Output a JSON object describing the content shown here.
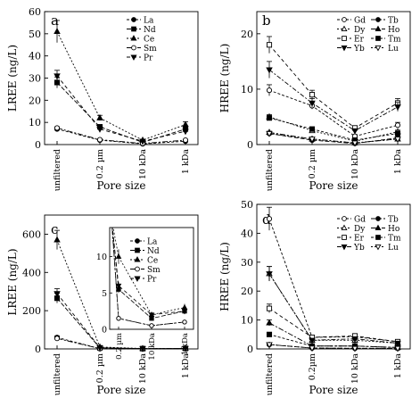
{
  "chart_data": [
    {
      "panel": "a",
      "type": "line",
      "categories": [
        "unfiltered",
        "0.2 µm",
        "10 kDa",
        "1 kDa"
      ],
      "xlabel": "Pore size",
      "ylabel": "LREE (ng/L)",
      "ylim": [
        0,
        60
      ],
      "yticks": [
        0,
        10,
        20,
        30,
        40,
        50,
        60
      ],
      "legend_position": "top-right",
      "series": [
        {
          "name": "La",
          "marker": "filled-circle",
          "values": [
            7,
            2,
            0.3,
            1.5
          ],
          "errors": [
            0.5,
            0.3,
            0.1,
            0.3
          ]
        },
        {
          "name": "Nd",
          "marker": "filled-square",
          "values": [
            28,
            8,
            1,
            7
          ],
          "errors": [
            2.5,
            1,
            0.3,
            1
          ]
        },
        {
          "name": "Ce",
          "marker": "filled-triangle-up",
          "values": [
            51,
            12,
            2,
            9
          ],
          "errors": [
            5,
            1.2,
            0.4,
            1.3
          ]
        },
        {
          "name": "Sm",
          "marker": "open-circle",
          "values": [
            7.5,
            2.2,
            0.5,
            2
          ],
          "errors": [
            0.5,
            0.3,
            0.1,
            0.3
          ]
        },
        {
          "name": "Pr",
          "marker": "filled-triangle-down",
          "values": [
            31,
            7,
            1.5,
            6
          ],
          "errors": [
            2.5,
            0.8,
            0.3,
            0.8
          ]
        }
      ]
    },
    {
      "panel": "b",
      "type": "line",
      "categories": [
        "unfiltered",
        "0.2 µm",
        "10 kDa",
        "1 kDa"
      ],
      "xlabel": "Pore size",
      "ylabel": "HREE (ng/L)",
      "ylim": [
        0,
        24
      ],
      "yticks": [
        0,
        10,
        20
      ],
      "legend_position": "top-right",
      "series": [
        {
          "name": "Gd",
          "marker": "open-circle",
          "values": [
            9.8,
            7,
            1.5,
            3.5
          ],
          "errors": [
            1,
            0.6,
            0.3,
            0.5
          ]
        },
        {
          "name": "Tb",
          "marker": "filled-circle",
          "values": [
            2,
            0.8,
            0.2,
            1.2
          ],
          "errors": [
            0.2,
            0.1,
            0.05,
            0.1
          ]
        },
        {
          "name": "Dy",
          "marker": "open-triangle-up",
          "values": [
            5,
            2.5,
            0.6,
            2.3
          ],
          "errors": [
            0.4,
            0.3,
            0.1,
            0.3
          ]
        },
        {
          "name": "Ho",
          "marker": "filled-triangle-up",
          "values": [
            2.2,
            1,
            0.3,
            1
          ],
          "errors": [
            0.2,
            0.1,
            0.05,
            0.1
          ]
        },
        {
          "name": "Er",
          "marker": "open-square",
          "values": [
            18,
            9,
            3,
            7.5
          ],
          "errors": [
            1.5,
            0.8,
            0.4,
            0.8
          ]
        },
        {
          "name": "Tm",
          "marker": "filled-square",
          "values": [
            4.8,
            2.8,
            0.8,
            2
          ],
          "errors": [
            0.4,
            0.3,
            0.1,
            0.2
          ]
        },
        {
          "name": "Yb",
          "marker": "filled-triangle-down",
          "values": [
            13.5,
            7.5,
            2.5,
            6.8
          ],
          "errors": [
            1.5,
            0.8,
            0.3,
            0.8
          ]
        },
        {
          "name": "Lu",
          "marker": "open-triangle-down",
          "values": [
            2,
            1,
            0.3,
            1
          ],
          "errors": [
            0.2,
            0.1,
            0.05,
            0.1
          ]
        }
      ]
    },
    {
      "panel": "c",
      "type": "line",
      "categories": [
        "unfiltered",
        "0.2 µm",
        "10 kDa",
        "1 kDa"
      ],
      "xlabel": "Pore size",
      "ylabel": "LREE (ng/L)",
      "ylim": [
        0,
        700
      ],
      "yticks": [
        0,
        200,
        400,
        600
      ],
      "legend_position": "inset",
      "series": [
        {
          "name": "La",
          "marker": "filled-circle",
          "values": [
            60,
            1.5,
            0.5,
            1
          ],
          "errors": [
            8,
            0.2,
            0.1,
            0.2
          ]
        },
        {
          "name": "Nd",
          "marker": "filled-square",
          "values": [
            265,
            5.5,
            1.5,
            2.5
          ],
          "errors": [
            25,
            0.5,
            0.3,
            0.4
          ]
        },
        {
          "name": "Ce",
          "marker": "filled-triangle-up",
          "values": [
            570,
            10,
            2,
            3
          ],
          "errors": [
            50,
            1,
            0.3,
            0.5
          ]
        },
        {
          "name": "Sm",
          "marker": "open-circle",
          "values": [
            55,
            1.5,
            0.5,
            1
          ],
          "errors": [
            6,
            0.2,
            0.1,
            0.2
          ]
        },
        {
          "name": "Pr",
          "marker": "filled-triangle-down",
          "values": [
            290,
            6,
            2,
            2.5
          ],
          "errors": [
            25,
            0.5,
            0.3,
            0.4
          ]
        }
      ],
      "inset": {
        "ylim": [
          0,
          14
        ],
        "yticks": [
          0,
          5,
          10
        ],
        "categories": [
          "0.2 µm",
          "10 kDa",
          "1 kDa"
        ]
      }
    },
    {
      "panel": "d",
      "type": "line",
      "categories": [
        "unfiltered",
        "0.2µm",
        "10 kDa",
        "1 kDa"
      ],
      "xlabel": "Pore size",
      "ylabel": "HREE (ng/L)",
      "ylim": [
        0,
        50
      ],
      "yticks": [
        0,
        10,
        20,
        30,
        40,
        50
      ],
      "legend_position": "top-right",
      "series": [
        {
          "name": "Gd",
          "marker": "open-circle",
          "values": [
            45,
            4,
            4.2,
            2.5
          ],
          "errors": [
            4,
            0.4,
            0.4,
            0.3
          ]
        },
        {
          "name": "Tb",
          "marker": "filled-circle",
          "values": [
            1.5,
            0.3,
            0.2,
            0.2
          ],
          "errors": [
            0.2,
            0.05,
            0.05,
            0.05
          ]
        },
        {
          "name": "Dy",
          "marker": "open-triangle-up",
          "values": [
            26,
            3,
            3,
            2
          ],
          "errors": [
            2.5,
            0.3,
            0.3,
            0.2
          ]
        },
        {
          "name": "Ho",
          "marker": "filled-triangle-up",
          "values": [
            9,
            1,
            1,
            0.5
          ],
          "errors": [
            1,
            0.1,
            0.1,
            0.1
          ]
        },
        {
          "name": "Er",
          "marker": "open-square",
          "values": [
            14,
            4,
            4.5,
            2.5
          ],
          "errors": [
            1.5,
            0.4,
            0.4,
            0.3
          ]
        },
        {
          "name": "Tm",
          "marker": "filled-square",
          "values": [
            5,
            1,
            1,
            0.5
          ],
          "errors": [
            0.5,
            0.1,
            0.1,
            0.1
          ]
        },
        {
          "name": "Yb",
          "marker": "filled-triangle-down",
          "values": [
            26,
            3,
            3.5,
            2
          ],
          "errors": [
            2.5,
            0.3,
            0.3,
            0.2
          ]
        },
        {
          "name": "Lu",
          "marker": "open-triangle-down",
          "values": [
            1.5,
            0.3,
            0.2,
            0.2
          ],
          "errors": [
            0.2,
            0.05,
            0.05,
            0.05
          ]
        }
      ]
    }
  ],
  "colors": {
    "ink": "#000000",
    "background": "#ffffff"
  }
}
